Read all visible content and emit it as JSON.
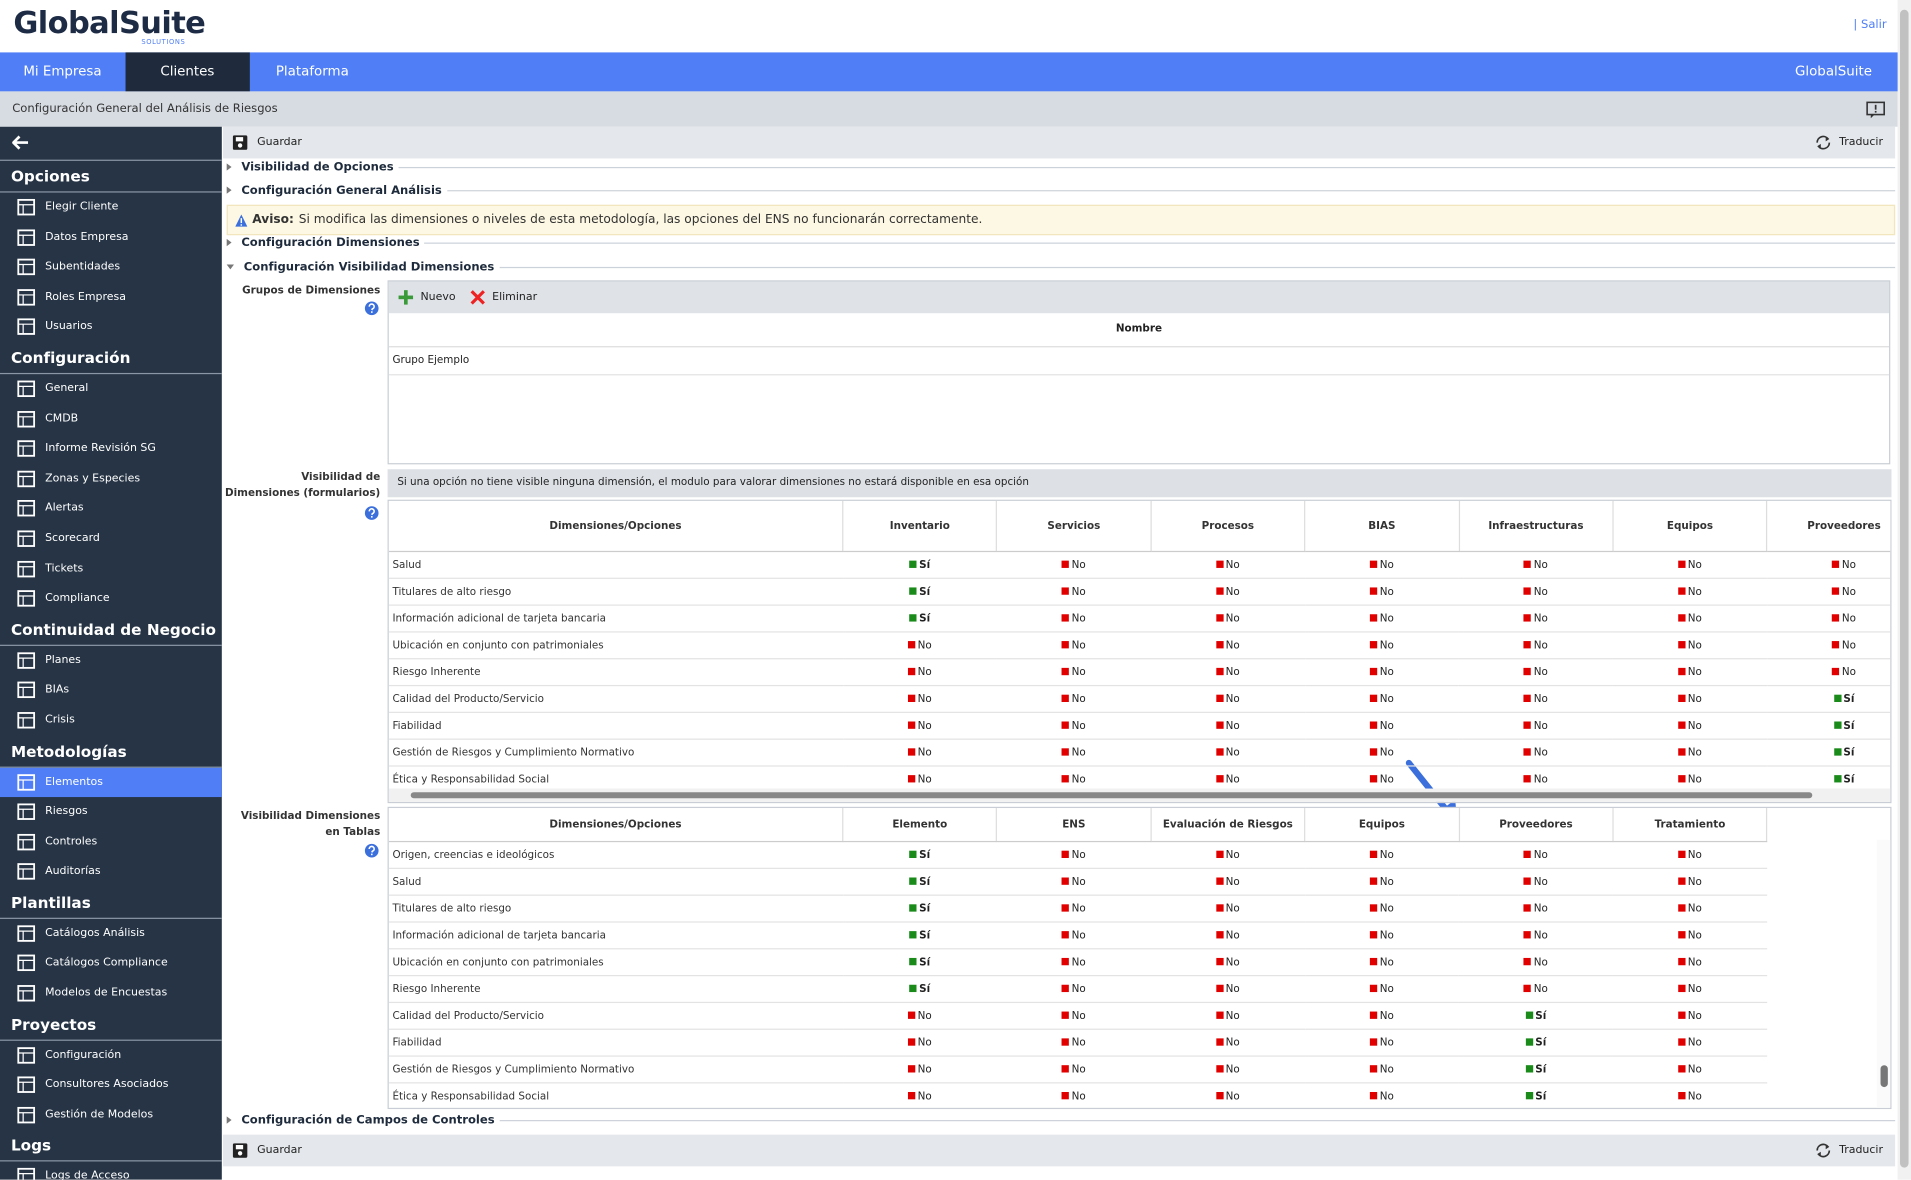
{
  "header": {
    "logo": "GlobalSuite",
    "logo_sub": "SOLUTIONS",
    "logout": "| Salir"
  },
  "nav": {
    "tabs": [
      "Mi Empresa",
      "Clientes",
      "Plataforma"
    ],
    "active_tab": 1,
    "brand": "GlobalSuite"
  },
  "breadcrumb": "Configuración General del Análisis de Riesgos",
  "sidebar": {
    "active_section": 3,
    "active_item": 0,
    "sections": [
      {
        "title": "Opciones",
        "items": [
          "Elegir Cliente",
          "Datos Empresa",
          "Subentidades",
          "Roles Empresa",
          "Usuarios"
        ]
      },
      {
        "title": "Configuración",
        "items": [
          "General",
          "CMDB",
          "Informe Revisión SG",
          "Zonas y Especies",
          "Alertas",
          "Scorecard",
          "Tickets",
          "Compliance"
        ]
      },
      {
        "title": "Continuidad de Negocio",
        "items": [
          "Planes",
          "BIAs",
          "Crisis"
        ]
      },
      {
        "title": "Metodologías",
        "items": [
          "Elementos",
          "Riesgos",
          "Controles",
          "Auditorías"
        ]
      },
      {
        "title": "Plantillas",
        "items": [
          "Catálogos Análisis",
          "Catálogos Compliance",
          "Modelos de Encuestas"
        ]
      },
      {
        "title": "Proyectos",
        "items": [
          "Configuración",
          "Consultores Asociados",
          "Gestión de Modelos"
        ]
      },
      {
        "title": "Logs",
        "items": [
          "Logs de Acceso"
        ]
      }
    ]
  },
  "toolbar": {
    "save": "Guardar",
    "translate": "Traducir"
  },
  "panels": {
    "visibilidad_opciones": "Visibilidad de Opciones",
    "config_general": "Configuración General Análisis",
    "warning": {
      "label": "Aviso:",
      "text": "Si modifica las dimensiones o niveles de esta metodología, las opciones del ENS no funcionarán correctamente."
    },
    "config_dimensiones": "Configuración Dimensiones",
    "config_visibilidad": "Configuración Visibilidad Dimensiones",
    "config_campos": "Configuración de Campos de Controles"
  },
  "groups": {
    "label": "Grupos de Dimensiones",
    "new": "Nuevo",
    "delete": "Eliminar",
    "header": "Nombre",
    "rows": [
      "Grupo Ejemplo"
    ]
  },
  "forms": {
    "label": "Visibilidad de Dimensiones (formularios)",
    "note": "Si una opción no tiene visible ninguna dimensión, el modulo para valorar dimensiones no estará disponible en esa opción",
    "columns": [
      "Dimensiones/Opciones",
      "Inventario",
      "Servicios",
      "Procesos",
      "BIAS",
      "Infraestructuras",
      "Equipos",
      "Proveedores"
    ],
    "rows": [
      {
        "name": "Salud",
        "values": [
          "Sí",
          "No",
          "No",
          "No",
          "No",
          "No",
          "No"
        ]
      },
      {
        "name": "Titulares de alto riesgo",
        "values": [
          "Sí",
          "No",
          "No",
          "No",
          "No",
          "No",
          "No"
        ]
      },
      {
        "name": "Información adicional de tarjeta bancaria",
        "values": [
          "Sí",
          "No",
          "No",
          "No",
          "No",
          "No",
          "No"
        ]
      },
      {
        "name": "Ubicación en conjunto con patrimoniales",
        "values": [
          "No",
          "No",
          "No",
          "No",
          "No",
          "No",
          "No"
        ]
      },
      {
        "name": "Riesgo Inherente",
        "values": [
          "No",
          "No",
          "No",
          "No",
          "No",
          "No",
          "No"
        ]
      },
      {
        "name": "Calidad del Producto/Servicio",
        "values": [
          "No",
          "No",
          "No",
          "No",
          "No",
          "No",
          "Sí"
        ]
      },
      {
        "name": "Fiabilidad",
        "values": [
          "No",
          "No",
          "No",
          "No",
          "No",
          "No",
          "Sí"
        ]
      },
      {
        "name": "Gestión de Riesgos y Cumplimiento Normativo",
        "values": [
          "No",
          "No",
          "No",
          "No",
          "No",
          "No",
          "Sí"
        ]
      },
      {
        "name": "Ética y Responsabilidad Social",
        "values": [
          "No",
          "No",
          "No",
          "No",
          "No",
          "No",
          "Sí"
        ]
      }
    ]
  },
  "tables": {
    "label": "Visibilidad Dimensiones en Tablas",
    "columns": [
      "Dimensiones/Opciones",
      "Elemento",
      "ENS",
      "Evaluación de Riesgos",
      "Equipos",
      "Proveedores",
      "Tratamiento"
    ],
    "rows": [
      {
        "name": "Origen, creencias e ideológicos",
        "values": [
          "Sí",
          "No",
          "No",
          "No",
          "No",
          "No"
        ]
      },
      {
        "name": "Salud",
        "values": [
          "Sí",
          "No",
          "No",
          "No",
          "No",
          "No"
        ]
      },
      {
        "name": "Titulares de alto riesgo",
        "values": [
          "Sí",
          "No",
          "No",
          "No",
          "No",
          "No"
        ]
      },
      {
        "name": "Información adicional de tarjeta bancaria",
        "values": [
          "Sí",
          "No",
          "No",
          "No",
          "No",
          "No"
        ]
      },
      {
        "name": "Ubicación en conjunto con patrimoniales",
        "values": [
          "Sí",
          "No",
          "No",
          "No",
          "No",
          "No"
        ]
      },
      {
        "name": "Riesgo Inherente",
        "values": [
          "Sí",
          "No",
          "No",
          "No",
          "No",
          "No"
        ]
      },
      {
        "name": "Calidad del Producto/Servicio",
        "values": [
          "No",
          "No",
          "No",
          "No",
          "Sí",
          "No"
        ]
      },
      {
        "name": "Fiabilidad",
        "values": [
          "No",
          "No",
          "No",
          "No",
          "Sí",
          "No"
        ]
      },
      {
        "name": "Gestión de Riesgos y Cumplimiento Normativo",
        "values": [
          "No",
          "No",
          "No",
          "No",
          "Sí",
          "No"
        ]
      },
      {
        "name": "Ética y Responsabilidad Social",
        "values": [
          "No",
          "No",
          "No",
          "No",
          "Sí",
          "No"
        ]
      }
    ]
  },
  "bottom_toolbar": {
    "save": "Guardar",
    "translate": "Traducir"
  }
}
